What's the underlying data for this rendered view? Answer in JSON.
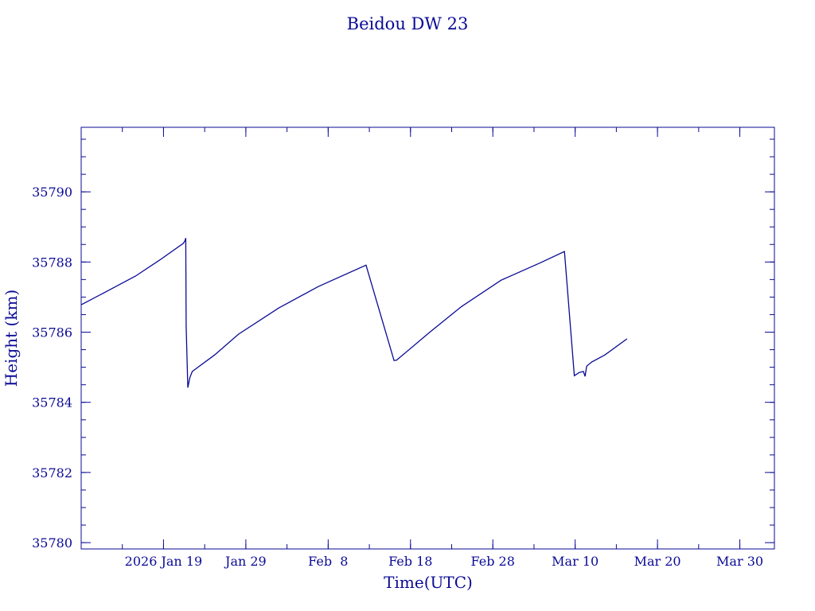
{
  "chart_data": {
    "type": "line",
    "title": "Beidou DW 23",
    "xlabel": "Time(UTC)",
    "ylabel": "Height (km)",
    "color": "#0a0a96",
    "x_units": "days since 2026-01-09 00:00 UTC",
    "xlim": [
      0,
      84.2
    ],
    "ylim": [
      35779.82,
      35791.84
    ],
    "x_ticks": [
      {
        "value": 10,
        "label": "2026 Jan 19"
      },
      {
        "value": 20,
        "label": "Jan 29"
      },
      {
        "value": 30,
        "label": "Feb  8"
      },
      {
        "value": 40,
        "label": "Feb 18"
      },
      {
        "value": 50,
        "label": "Feb 28"
      },
      {
        "value": 60,
        "label": "Mar 10"
      },
      {
        "value": 70,
        "label": "Mar 20"
      },
      {
        "value": 80,
        "label": "Mar 30"
      }
    ],
    "x_minor_step": 5,
    "y_ticks": [
      {
        "value": 35780,
        "label": "35780"
      },
      {
        "value": 35782,
        "label": "35782"
      },
      {
        "value": 35784,
        "label": "35784"
      },
      {
        "value": 35786,
        "label": "35786"
      },
      {
        "value": 35788,
        "label": "35788"
      },
      {
        "value": 35790,
        "label": "35790"
      }
    ],
    "y_minor_step": 0.5,
    "grid": false,
    "series": [
      {
        "name": "Height",
        "x": [
          0,
          3,
          6.6,
          9.5,
          12.4,
          12.6,
          12.7,
          12.75,
          12.95,
          13.2,
          13.5,
          16.2,
          19.1,
          24,
          28.8,
          34.6,
          38,
          38.3,
          42.3,
          46.2,
          51,
          55.8,
          58.7,
          59.9,
          60.5,
          61.0,
          61.2,
          61.4,
          62,
          63.6,
          66.3
        ],
        "y": [
          35786.78,
          35787.15,
          35787.6,
          35788.05,
          35788.53,
          35788.6,
          35788.68,
          35786.17,
          35784.42,
          35784.7,
          35784.88,
          35785.35,
          35785.94,
          35786.69,
          35787.3,
          35787.91,
          35785.19,
          35785.2,
          35785.99,
          35786.73,
          35787.48,
          35787.98,
          35788.3,
          35784.76,
          35784.85,
          35784.88,
          35784.74,
          35785.03,
          35785.15,
          35785.35,
          35785.81
        ]
      }
    ]
  }
}
